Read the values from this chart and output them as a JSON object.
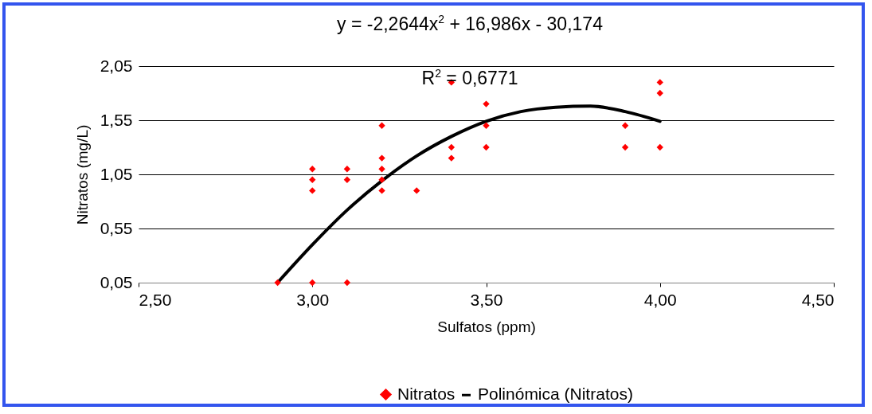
{
  "chart_data": {
    "type": "scatter",
    "xlabel": "Sulfatos (ppm)",
    "ylabel": "Nitratos (mg/L)",
    "annotations": [
      "y = -2,2644x$^{2}$ + 16,986x - 30,174",
      "R$^{2}$ = 0,6771"
    ],
    "xlim": [
      2.5,
      4.5
    ],
    "xticks": [
      {
        "value": 2.5,
        "label": "2,50"
      },
      {
        "value": 3.0,
        "label": "3,00"
      },
      {
        "value": 3.5,
        "label": "3,50"
      },
      {
        "value": 4.0,
        "label": "4,00"
      },
      {
        "value": 4.5,
        "label": "4,50"
      }
    ],
    "ylim": [
      0.05,
      2.05
    ],
    "yticks": [
      {
        "value": 0.05,
        "label": "0,05"
      },
      {
        "value": 0.55,
        "label": "0,55"
      },
      {
        "value": 1.05,
        "label": "1,05"
      },
      {
        "value": 1.55,
        "label": "1,55"
      },
      {
        "value": 2.05,
        "label": "2,05"
      }
    ],
    "grid": "y",
    "legend": "bottom",
    "series": [
      {
        "name": "Nitratos",
        "marker": "diamond",
        "color": "#ff0000",
        "x": [
          2.9,
          3.0,
          3.0,
          3.0,
          3.0,
          3.1,
          3.1,
          3.1,
          3.2,
          3.2,
          3.2,
          3.2,
          3.2,
          3.3,
          3.4,
          3.4,
          3.4,
          3.5,
          3.5,
          3.5,
          3.9,
          3.9,
          4.0,
          4.0,
          4.0
        ],
        "values": [
          0.05,
          1.1,
          1.0,
          0.9,
          0.05,
          1.1,
          1.0,
          0.05,
          1.5,
          1.2,
          1.1,
          1.0,
          0.9,
          0.9,
          1.9,
          1.3,
          1.2,
          1.7,
          1.5,
          1.3,
          1.5,
          1.3,
          1.9,
          1.8,
          1.3
        ]
      },
      {
        "name": "Polinómica (Nitratos)",
        "type": "line",
        "marker": "none",
        "color": "#000000",
        "x": [
          2.9,
          3.0,
          3.1,
          3.2,
          3.3,
          3.4,
          3.5,
          3.6,
          3.7,
          3.8,
          3.9,
          4.0
        ],
        "values": [
          0.05,
          0.4,
          0.72,
          0.99,
          1.22,
          1.4,
          1.54,
          1.63,
          1.67,
          1.68,
          1.63,
          1.54
        ]
      }
    ]
  }
}
